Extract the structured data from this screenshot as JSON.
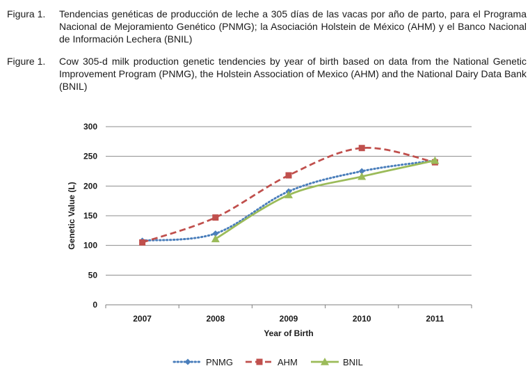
{
  "caption_es": {
    "number": "Figura 1.",
    "text": "Tendencias genéticas de producción de leche a 305 días de las vacas por año de parto, para el Programa Nacional de Mejoramiento Genético (PNMG); la Asociación Holstein de México (AHM) y el Banco Nacional de Información Lechera (BNIL)"
  },
  "caption_en": {
    "number": "Figure 1.",
    "text": "Cow 305-d milk production genetic tendencies by year of birth based on data from the National Genetic Improvement Program (PNMG), the Holstein Association of Mexico (AHM) and the National Dairy Data Bank (BNIL)"
  },
  "chart_data": {
    "type": "line",
    "title": "",
    "xlabel": "Year of Birth",
    "ylabel": "Genetic Value (L)",
    "categories": [
      "2007",
      "2008",
      "2009",
      "2010",
      "2011"
    ],
    "ylim": [
      0,
      300
    ],
    "yticks": [
      0,
      50,
      100,
      150,
      200,
      250,
      300
    ],
    "grid": true,
    "legend_position": "bottom",
    "series": [
      {
        "name": "PNMG",
        "values": [
          108,
          120,
          191,
          225,
          243
        ],
        "color": "#4a7ebb",
        "marker": "diamond",
        "dash": "dotted"
      },
      {
        "name": "AHM",
        "values": [
          105,
          147,
          218,
          264,
          240
        ],
        "color": "#c0504d",
        "marker": "square",
        "dash": "dashed"
      },
      {
        "name": "BNIL",
        "values": [
          null,
          111,
          185,
          216,
          243
        ],
        "color": "#9bbb59",
        "marker": "triangle",
        "dash": "solid"
      }
    ]
  }
}
